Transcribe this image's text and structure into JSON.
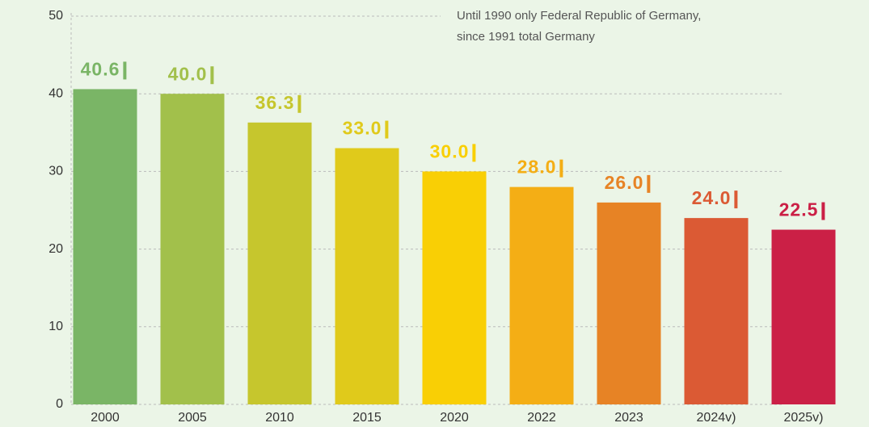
{
  "chart_data": {
    "type": "bar",
    "annotation": [
      "Until 1990 only Federal Republic of Germany,",
      "since 1991 total Germany"
    ],
    "categories": [
      "2000",
      "2005",
      "2010",
      "2015",
      "2020",
      "2022",
      "2023",
      "2024v)",
      "2025v)"
    ],
    "values": [
      40.6,
      40.0,
      36.3,
      33.0,
      30.0,
      28.0,
      26.0,
      24.0,
      22.5
    ],
    "value_labels": [
      "40.6",
      "40.0",
      "36.3",
      "33.0",
      "30.0",
      "28.0",
      "26.0",
      "24.0",
      "22.5"
    ],
    "colors": [
      "#7ab566",
      "#a2c04b",
      "#c6c62d",
      "#e0ca1b",
      "#f9cf05",
      "#f4ae15",
      "#e78325",
      "#db5a34",
      "#cb2046"
    ],
    "ylim": [
      0,
      50
    ],
    "yticks": [
      0,
      10,
      20,
      30,
      40,
      50
    ],
    "grid": true
  }
}
